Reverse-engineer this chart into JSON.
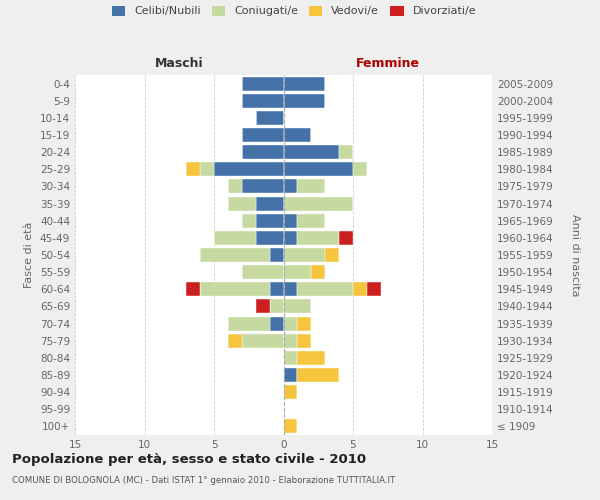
{
  "age_groups": [
    "100+",
    "95-99",
    "90-94",
    "85-89",
    "80-84",
    "75-79",
    "70-74",
    "65-69",
    "60-64",
    "55-59",
    "50-54",
    "45-49",
    "40-44",
    "35-39",
    "30-34",
    "25-29",
    "20-24",
    "15-19",
    "10-14",
    "5-9",
    "0-4"
  ],
  "birth_years": [
    "≤ 1909",
    "1910-1914",
    "1915-1919",
    "1920-1924",
    "1925-1929",
    "1930-1934",
    "1935-1939",
    "1940-1944",
    "1945-1949",
    "1950-1954",
    "1955-1959",
    "1960-1964",
    "1965-1969",
    "1970-1974",
    "1975-1979",
    "1980-1984",
    "1985-1989",
    "1990-1994",
    "1995-1999",
    "2000-2004",
    "2005-2009"
  ],
  "maschi_celibi": [
    0,
    0,
    0,
    0,
    0,
    0,
    1,
    0,
    1,
    0,
    1,
    2,
    2,
    2,
    3,
    5,
    3,
    3,
    2,
    3,
    3
  ],
  "maschi_coniugati": [
    0,
    0,
    0,
    0,
    0,
    3,
    3,
    1,
    5,
    3,
    5,
    3,
    1,
    2,
    1,
    1,
    0,
    0,
    0,
    0,
    0
  ],
  "maschi_vedovi": [
    0,
    0,
    0,
    0,
    0,
    1,
    0,
    0,
    0,
    0,
    0,
    0,
    0,
    0,
    0,
    1,
    0,
    0,
    0,
    0,
    0
  ],
  "maschi_divorziati": [
    0,
    0,
    0,
    0,
    0,
    0,
    0,
    1,
    1,
    0,
    0,
    0,
    0,
    0,
    0,
    0,
    0,
    0,
    0,
    0,
    0
  ],
  "femmine_nubili": [
    0,
    0,
    0,
    1,
    0,
    0,
    0,
    0,
    1,
    0,
    0,
    1,
    1,
    0,
    1,
    5,
    4,
    2,
    0,
    3,
    3
  ],
  "femmine_coniugate": [
    0,
    0,
    0,
    0,
    1,
    1,
    1,
    2,
    4,
    2,
    3,
    3,
    2,
    5,
    2,
    1,
    1,
    0,
    0,
    0,
    0
  ],
  "femmine_vedove": [
    1,
    0,
    1,
    3,
    2,
    1,
    1,
    0,
    1,
    1,
    1,
    0,
    0,
    0,
    0,
    0,
    0,
    0,
    0,
    0,
    0
  ],
  "femmine_divorziate": [
    0,
    0,
    0,
    0,
    0,
    0,
    0,
    0,
    1,
    0,
    0,
    1,
    0,
    0,
    0,
    0,
    0,
    0,
    0,
    0,
    0
  ],
  "color_celibi": "#4472a8",
  "color_coniugati": "#c5d9a0",
  "color_vedovi": "#f5c53e",
  "color_divorziati": "#cc2020",
  "xlim": 15,
  "title": "Popolazione per età, sesso e stato civile - 2010",
  "subtitle": "COMUNE DI BOLOGNOLA (MC) - Dati ISTAT 1° gennaio 2010 - Elaborazione TUTTITALIA.IT",
  "label_maschi": "Maschi",
  "label_femmine": "Femmine",
  "ylabel_left": "Fasce di età",
  "ylabel_right": "Anni di nascita",
  "legend_labels": [
    "Celibi/Nubili",
    "Coniugati/e",
    "Vedovi/e",
    "Divorziati/e"
  ],
  "bg_color": "#efefef",
  "plot_bg": "#ffffff"
}
